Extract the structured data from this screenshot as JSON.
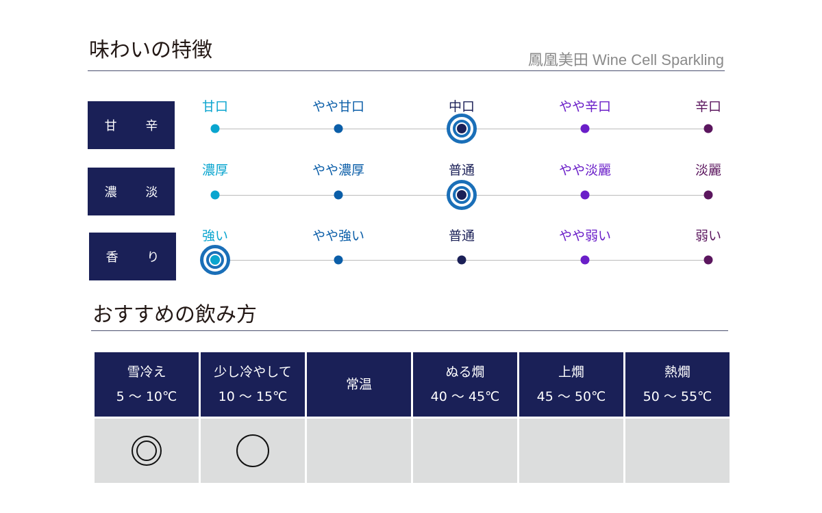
{
  "header": {
    "title": "味わいの特徴",
    "subtitle": "鳳凰美田 Wine Cell Sparkling"
  },
  "colors": {
    "navy": "#1a2057",
    "levels": [
      "#0aa5cf",
      "#0b5ea8",
      "#1b2057",
      "#6a1ec8",
      "#5b165e"
    ],
    "ring": "#1a6fb8"
  },
  "taste": [
    {
      "label": "甘 辛",
      "points": [
        "甘口",
        "やや甘口",
        "中口",
        "やや辛口",
        "辛口"
      ],
      "selected": 2
    },
    {
      "label": "濃 淡",
      "points": [
        "濃厚",
        "やや濃厚",
        "普通",
        "やや淡麗",
        "淡麗"
      ],
      "selected": 2
    },
    {
      "label": "香 り",
      "points": [
        "強い",
        "やや強い",
        "普通",
        "やや弱い",
        "弱い"
      ],
      "selected": 0
    }
  ],
  "serving": {
    "title": "おすすめの飲み方",
    "columns": [
      {
        "name": "雪冷え",
        "temp": "5 〜 10℃",
        "rating": "double-circle"
      },
      {
        "name": "少し冷やして",
        "temp": "10 〜 15℃",
        "rating": "circle"
      },
      {
        "name": "常温",
        "temp": "",
        "rating": ""
      },
      {
        "name": "ぬる燗",
        "temp": "40 〜 45℃",
        "rating": ""
      },
      {
        "name": "上燗",
        "temp": "45 〜 50℃",
        "rating": ""
      },
      {
        "name": "熱燗",
        "temp": "50 〜 55℃",
        "rating": ""
      }
    ]
  }
}
